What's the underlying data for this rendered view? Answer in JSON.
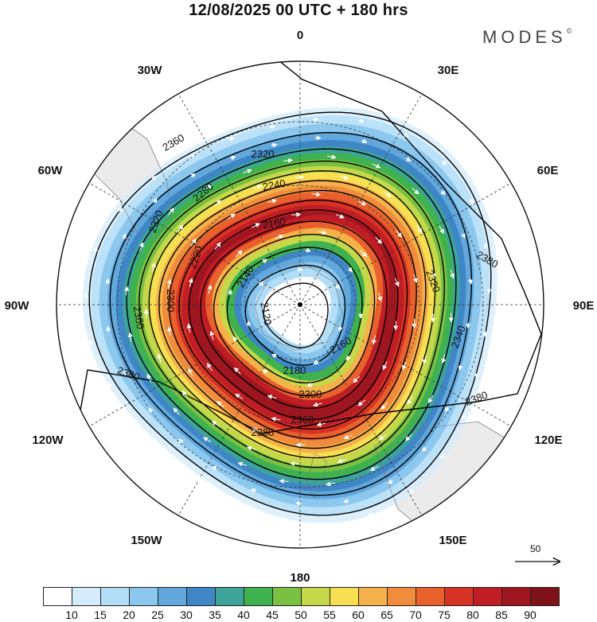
{
  "title": "12/08/2025  00 UTC  + 180 hrs",
  "brand": "MODES",
  "brand_mark": "©",
  "longitude_labels": [
    {
      "id": "lon-0",
      "text": "0"
    },
    {
      "id": "lon-30e",
      "text": "30E"
    },
    {
      "id": "lon-60e",
      "text": "60E"
    },
    {
      "id": "lon-90e",
      "text": "90E"
    },
    {
      "id": "lon-120e",
      "text": "120E"
    },
    {
      "id": "lon-150e",
      "text": "150E"
    },
    {
      "id": "lon-180",
      "text": "180"
    },
    {
      "id": "lon-150w",
      "text": "150W"
    },
    {
      "id": "lon-120w",
      "text": "120W"
    },
    {
      "id": "lon-90w",
      "text": "90W"
    },
    {
      "id": "lon-60w",
      "text": "60W"
    },
    {
      "id": "lon-30w",
      "text": "30W"
    }
  ],
  "contour_labels": [
    "2120",
    "2140",
    "2160",
    "2180",
    "2220",
    "2240",
    "2280",
    "2300",
    "2320",
    "2340",
    "2360",
    "2380"
  ],
  "reference_vector_label": "50",
  "colorbar": {
    "labels": [
      "10",
      "15",
      "20",
      "25",
      "30",
      "35",
      "40",
      "45",
      "50",
      "55",
      "60",
      "65",
      "70",
      "75",
      "80",
      "85",
      "90"
    ],
    "colors": [
      "#ffffff",
      "#d4ecfb",
      "#b3def7",
      "#8cc7ee",
      "#62a8dd",
      "#3f86c6",
      "#3ea399",
      "#3fb24f",
      "#7ac143",
      "#c4d84a",
      "#f6e052",
      "#f5b24a",
      "#f08c3c",
      "#e8602c",
      "#d83224",
      "#c01d24",
      "#9e1620",
      "#7f1118"
    ]
  },
  "colors": {
    "land": "#ebebeb",
    "coast": "#777777",
    "contour": "#000000",
    "wind_vector": "#ffffff"
  }
}
